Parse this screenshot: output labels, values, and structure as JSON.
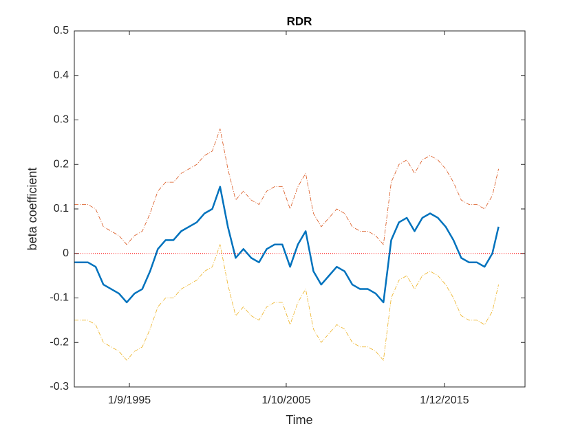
{
  "chart_data": {
    "type": "line",
    "title": "RDR",
    "xlabel": "Time",
    "ylabel": "beta coefficient",
    "x": [
      1992.13,
      1992.5,
      1993,
      1993.5,
      1994,
      1994.5,
      1995,
      1995.5,
      1996,
      1996.5,
      1997,
      1997.5,
      1998,
      1998.5,
      1999,
      1999.5,
      2000,
      2000.5,
      2001,
      2001.5,
      2002,
      2002.5,
      2003,
      2003.5,
      2004,
      2004.5,
      2005,
      2005.5,
      2006,
      2006.5,
      2007,
      2007.5,
      2008,
      2008.5,
      2009,
      2009.5,
      2010,
      2010.5,
      2011,
      2011.5,
      2012,
      2012.5,
      2013,
      2013.5,
      2014,
      2014.5,
      2015,
      2015.5,
      2016,
      2016.5,
      2017,
      2017.5,
      2018,
      2018.5,
      2019,
      2019.4
    ],
    "series": [
      {
        "color": "#D95319",
        "linestyle": "dashdot",
        "width": 0.8,
        "values": [
          0.11,
          0.11,
          0.11,
          0.1,
          0.06,
          0.05,
          0.04,
          0.02,
          0.04,
          0.05,
          0.09,
          0.14,
          0.16,
          0.16,
          0.18,
          0.19,
          0.2,
          0.22,
          0.23,
          0.28,
          0.19,
          0.12,
          0.14,
          0.12,
          0.11,
          0.14,
          0.15,
          0.15,
          0.1,
          0.15,
          0.18,
          0.09,
          0.06,
          0.08,
          0.1,
          0.09,
          0.06,
          0.05,
          0.05,
          0.04,
          0.02,
          0.16,
          0.2,
          0.21,
          0.18,
          0.21,
          0.22,
          0.21,
          0.19,
          0.16,
          0.12,
          0.11,
          0.11,
          0.1,
          0.13,
          0.19
        ]
      },
      {
        "color": "#EDB120",
        "linestyle": "dashdot",
        "width": 0.8,
        "values": [
          -0.15,
          -0.15,
          -0.15,
          -0.16,
          -0.2,
          -0.21,
          -0.22,
          -0.24,
          -0.22,
          -0.21,
          -0.17,
          -0.12,
          -0.1,
          -0.1,
          -0.08,
          -0.07,
          -0.06,
          -0.04,
          -0.03,
          0.02,
          -0.07,
          -0.14,
          -0.12,
          -0.14,
          -0.15,
          -0.12,
          -0.11,
          -0.11,
          -0.16,
          -0.11,
          -0.08,
          -0.17,
          -0.2,
          -0.18,
          -0.16,
          -0.17,
          -0.2,
          -0.21,
          -0.21,
          -0.22,
          -0.24,
          -0.1,
          -0.06,
          -0.05,
          -0.08,
          -0.05,
          -0.04,
          -0.05,
          -0.07,
          -0.1,
          -0.14,
          -0.15,
          -0.15,
          -0.16,
          -0.13,
          -0.07
        ]
      },
      {
        "color": "#0072BD",
        "linestyle": "solid",
        "width": 2.5,
        "values": [
          -0.02,
          -0.02,
          -0.02,
          -0.03,
          -0.07,
          -0.08,
          -0.09,
          -0.11,
          -0.09,
          -0.08,
          -0.04,
          0.01,
          0.03,
          0.03,
          0.05,
          0.06,
          0.07,
          0.09,
          0.1,
          0.15,
          0.06,
          -0.01,
          0.01,
          -0.01,
          -0.02,
          0.01,
          0.02,
          0.02,
          -0.03,
          0.02,
          0.05,
          -0.04,
          -0.07,
          -0.05,
          -0.03,
          -0.04,
          -0.07,
          -0.08,
          -0.08,
          -0.09,
          -0.11,
          0.03,
          0.07,
          0.08,
          0.05,
          0.08,
          0.09,
          0.08,
          0.06,
          0.03,
          -0.01,
          -0.02,
          -0.02,
          -0.03,
          0,
          0.06
        ]
      }
    ],
    "hline": 0,
    "hline_color": "#FF0000",
    "xlim": [
      1992.13,
      2021.1
    ],
    "xticks": [
      {
        "value": 1995.67,
        "label": "1/9/1995"
      },
      {
        "value": 2005.75,
        "label": "1/10/2005"
      },
      {
        "value": 2015.92,
        "label": "1/12/2015"
      }
    ],
    "ylim": [
      -0.3,
      0.5
    ],
    "yticks": [
      -0.3,
      -0.2,
      -0.1,
      0,
      0.1,
      0.2,
      0.3,
      0.4,
      0.5
    ],
    "grid": false
  }
}
